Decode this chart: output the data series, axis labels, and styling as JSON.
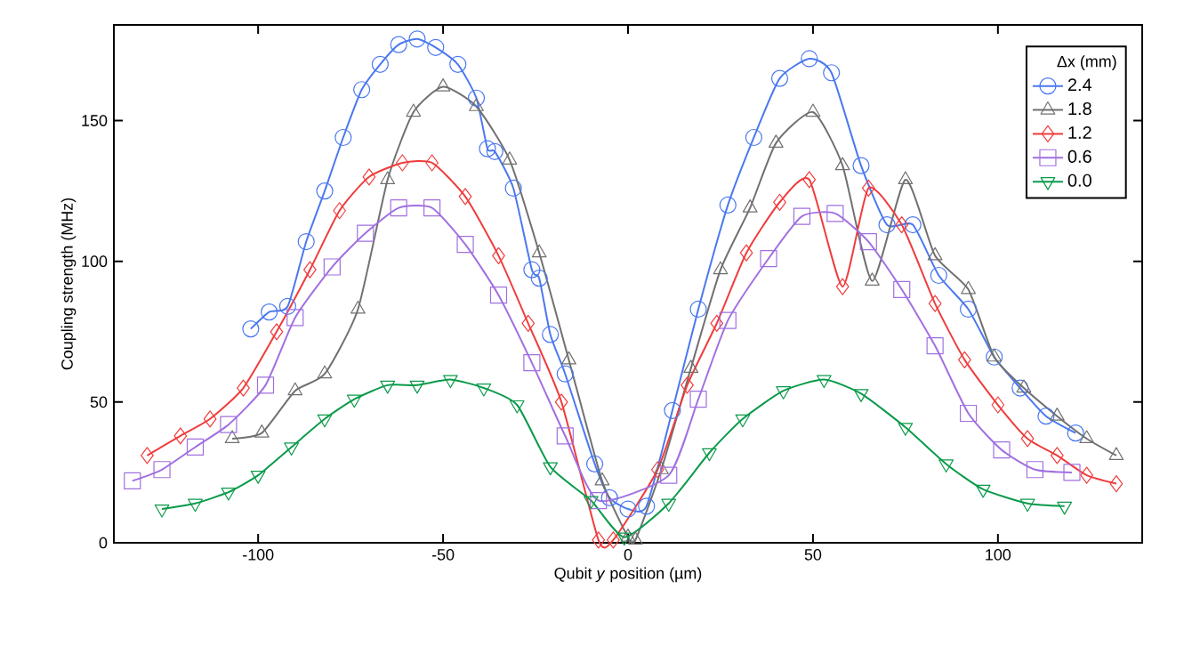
{
  "chart_data": {
    "type": "line",
    "xlabel": "Qubit *y* position (µm)",
    "ylabel": "Coupling strength (MHz)",
    "legend_title": "Δx (mm)",
    "legend": "top right",
    "grid": false,
    "xlim": [
      -139,
      139
    ],
    "ylim": [
      0,
      184
    ],
    "xticks": [
      -100,
      -50,
      0,
      50,
      100
    ],
    "yticks": [
      0,
      50,
      100,
      150
    ],
    "series": [
      {
        "name": "2.4",
        "color": "#4a78f0",
        "marker": "circle",
        "x": [
          -102,
          -97,
          -92,
          -87,
          -82,
          -77,
          -72,
          -67,
          -62,
          -57,
          -52,
          -46,
          -41,
          -38,
          -36,
          -31,
          -26,
          -24,
          -21,
          -17,
          -9,
          -5,
          0,
          5,
          12,
          19,
          27,
          34,
          41,
          49,
          55,
          63,
          70,
          77,
          84,
          92,
          99,
          106,
          113,
          121
        ],
        "values": [
          76,
          82,
          84,
          107,
          125,
          144,
          161,
          170,
          177,
          179,
          176,
          170,
          158,
          140,
          139,
          126,
          97,
          94,
          74,
          60,
          28,
          16,
          12,
          13,
          47,
          83,
          120,
          144,
          165,
          172,
          167,
          134,
          113,
          113,
          95,
          83,
          66,
          55,
          45,
          39
        ]
      },
      {
        "name": "1.8",
        "color": "#707070",
        "marker": "triangle",
        "x": [
          -107,
          -99,
          -90,
          -82,
          -73,
          -65,
          -58,
          -50,
          -41,
          -32,
          -24,
          -16,
          -7,
          0,
          2,
          9,
          17,
          25,
          33,
          40,
          50,
          58,
          66,
          75,
          83,
          92,
          99,
          107,
          116,
          124,
          132
        ],
        "values": [
          37,
          39,
          54,
          60,
          83,
          129,
          153,
          162,
          155,
          136,
          103,
          65,
          22,
          2,
          1,
          26,
          62,
          97,
          119,
          142,
          153,
          134,
          93,
          129,
          102,
          90,
          66,
          55,
          45,
          37,
          31
        ]
      },
      {
        "name": "1.2",
        "color": "#f03c3c",
        "marker": "diamond",
        "x": [
          -130,
          -121,
          -113,
          -104,
          -95,
          -86,
          -78,
          -70,
          -61,
          -53,
          -44,
          -35,
          -27,
          -18,
          -8,
          -4,
          8,
          16,
          24,
          32,
          41,
          49,
          58,
          65,
          74,
          83,
          91,
          100,
          108,
          116,
          124,
          132
        ],
        "values": [
          31,
          38,
          44,
          55,
          75,
          97,
          118,
          130,
          135,
          135,
          123,
          102,
          78,
          50,
          1,
          1,
          26,
          56,
          78,
          103,
          121,
          129,
          91,
          126,
          113,
          85,
          65,
          49,
          37,
          31,
          24,
          21
        ]
      },
      {
        "name": "0.6",
        "color": "#a070e0",
        "marker": "square",
        "x": [
          -134,
          -126,
          -117,
          -108,
          -98,
          -90,
          -80,
          -71,
          -62,
          -53,
          -44,
          -35,
          -26,
          -17,
          -8,
          11,
          19,
          27,
          38,
          47,
          56,
          65,
          74,
          83,
          92,
          101,
          110,
          120
        ],
        "values": [
          22,
          26,
          34,
          42,
          56,
          80,
          98,
          110,
          119,
          119,
          106,
          88,
          64,
          38,
          15,
          24,
          51,
          79,
          101,
          116,
          117,
          107,
          90,
          70,
          46,
          33,
          26,
          25
        ]
      },
      {
        "name": "0.0",
        "color": "#0a9a4a",
        "marker": "triangle-down",
        "x": [
          -126,
          -117,
          -108,
          -100,
          -91,
          -82,
          -74,
          -65,
          -57,
          -48,
          -39,
          -30,
          -21,
          -10,
          -1,
          11,
          22,
          31,
          42,
          53,
          63,
          75,
          86,
          96,
          108,
          118
        ],
        "values": [
          12,
          14,
          18,
          24,
          34,
          44,
          51,
          56,
          56,
          58,
          55,
          49,
          27,
          15,
          2,
          14,
          32,
          44,
          54,
          58,
          53,
          41,
          28,
          19,
          14,
          13
        ]
      }
    ]
  }
}
